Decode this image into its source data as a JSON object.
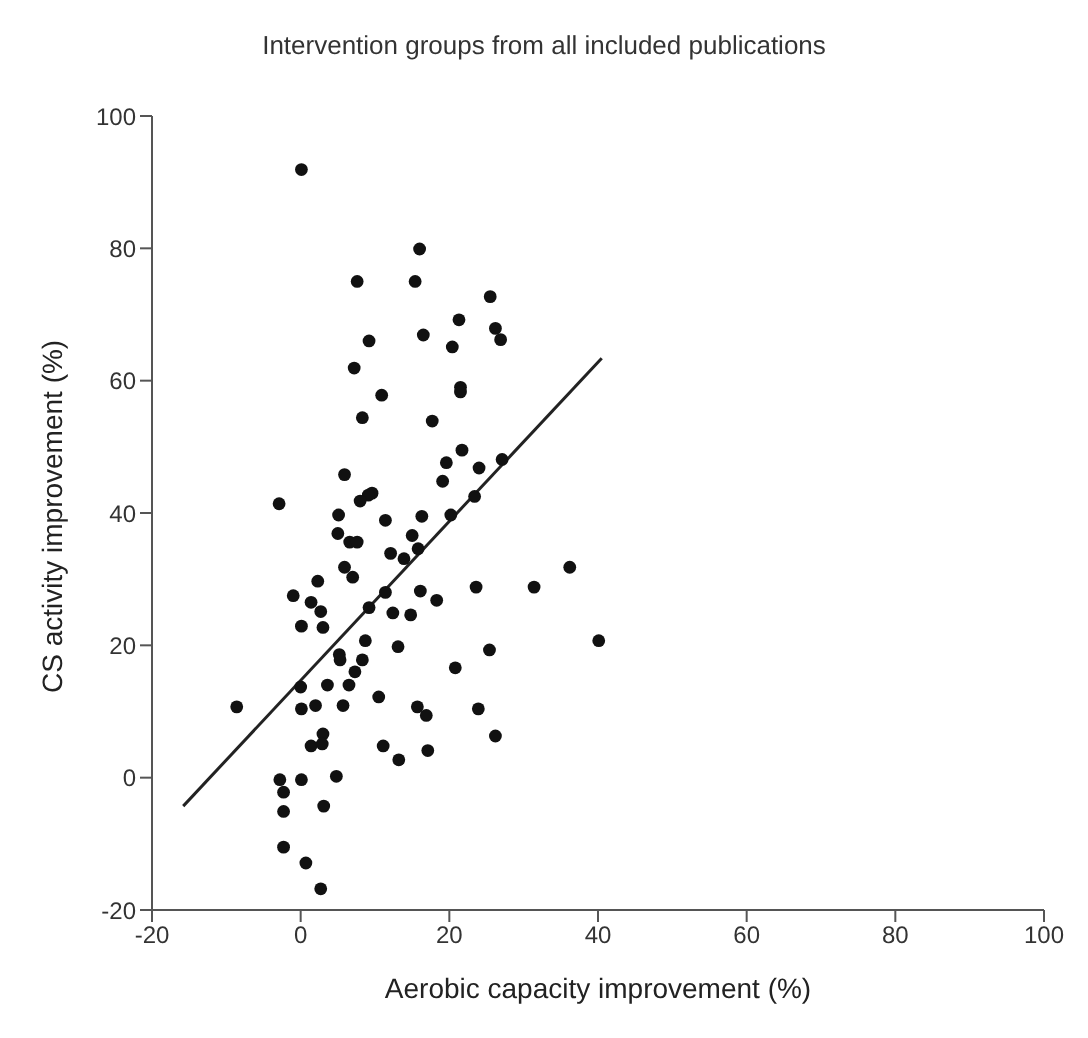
{
  "chart_data": {
    "type": "scatter",
    "title": "Intervention groups from all included publications",
    "xlabel": "Aerobic capacity improvement (%)",
    "ylabel": "CS activity improvement (%)",
    "xlim": [
      -20,
      100
    ],
    "xticks": [
      -20,
      0,
      20,
      40,
      60,
      80,
      100
    ],
    "ylim": [
      -20,
      100
    ],
    "yticks": [
      -20,
      0,
      20,
      40,
      60,
      80,
      100
    ],
    "grid": false,
    "series": [
      {
        "marker": "circle",
        "color": "#111111",
        "x": [
          5.9,
          -2.9,
          9.6,
          9.1,
          8,
          5.1,
          11.4,
          16.3,
          5,
          6.6,
          7.6,
          15,
          12.1,
          13.9,
          15.8,
          5.9,
          7,
          2.3,
          -1,
          1.4,
          2.7,
          0.1,
          3,
          9.2,
          11.4,
          12.4,
          14.8,
          16.1,
          18.3,
          23.6,
          31.4,
          36.2,
          40.1,
          8.7,
          13.1,
          25.4,
          20.8,
          8.3,
          5.2,
          5.3,
          7.3,
          3.6,
          6.5,
          0,
          -8.6,
          0.1,
          2,
          5.7,
          10.5,
          15.7,
          16.9,
          23.9,
          26.2,
          3,
          1.4,
          2.9,
          11.1,
          13.2,
          17.1,
          -2.8,
          0.1,
          4.8,
          -2.3,
          -2.3,
          3.1,
          -2.3,
          0.7,
          2.7,
          19.6,
          21.7,
          19.1,
          24,
          27.1,
          23.4,
          20.2,
          0.1,
          16,
          7.6,
          15.4,
          25.5,
          21.3,
          26.2,
          26.9,
          9.2,
          16.5,
          20.4,
          7.2,
          10.9,
          21.5,
          21.5,
          8.3,
          17.7
        ],
        "values": [
          45.8,
          41.4,
          43,
          42.7,
          41.8,
          39.7,
          38.9,
          39.5,
          36.9,
          35.6,
          35.6,
          36.6,
          33.9,
          33.1,
          34.6,
          31.8,
          30.3,
          29.7,
          27.5,
          26.5,
          25.1,
          22.9,
          22.7,
          25.7,
          28,
          24.9,
          24.6,
          28.2,
          26.8,
          28.8,
          28.8,
          31.8,
          20.7,
          20.7,
          19.8,
          19.3,
          16.6,
          17.8,
          18.6,
          17.8,
          16,
          14,
          14,
          13.7,
          10.7,
          10.4,
          10.9,
          10.9,
          12.2,
          10.7,
          9.4,
          10.4,
          6.3,
          6.6,
          4.8,
          5.1,
          4.8,
          2.7,
          4.1,
          -0.3,
          -0.3,
          0.2,
          -2.2,
          -5.1,
          -4.3,
          -10.5,
          -12.9,
          -16.8,
          47.6,
          49.5,
          44.8,
          46.8,
          48.1,
          42.5,
          39.7,
          91.9,
          79.9,
          75,
          75,
          72.7,
          69.2,
          67.9,
          66.2,
          66,
          66.9,
          65.1,
          61.9,
          57.8,
          59,
          58.3,
          54.4,
          53.9
        ]
      },
      {
        "type": "line",
        "color": "#222222",
        "line_style": "solid",
        "x": [
          -15.8,
          40.5
        ],
        "values": [
          -4.3,
          63.4
        ]
      }
    ]
  }
}
